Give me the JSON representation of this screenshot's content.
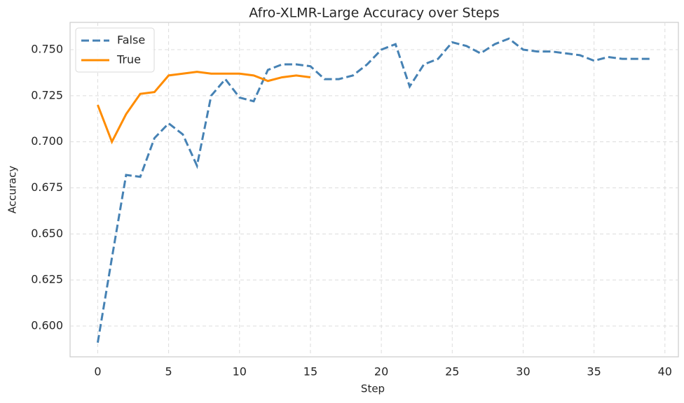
{
  "chart_data": {
    "type": "line",
    "title": "Afro-XLMR-Large Accuracy over Steps",
    "x_label": "Step",
    "y_label": "Accuracy",
    "x": [
      0,
      1,
      2,
      3,
      4,
      5,
      6,
      7,
      8,
      9,
      10,
      11,
      12,
      13,
      14,
      15,
      16,
      17,
      18,
      19,
      20,
      21,
      22,
      23,
      24,
      25,
      26,
      27,
      28,
      29,
      30,
      31,
      32,
      33,
      34,
      35,
      36,
      37,
      38,
      39
    ],
    "series": [
      {
        "name": "False",
        "color": "#4682b4",
        "linestyle": "dashed",
        "values": [
          0.591,
          0.637,
          0.682,
          0.681,
          0.702,
          0.71,
          0.704,
          0.687,
          0.725,
          0.734,
          0.724,
          0.722,
          0.739,
          0.742,
          0.742,
          0.741,
          0.734,
          0.734,
          0.736,
          0.742,
          0.75,
          0.753,
          0.73,
          0.742,
          0.745,
          0.754,
          0.752,
          0.748,
          0.753,
          0.756,
          0.75,
          0.749,
          0.749,
          0.748,
          0.747,
          0.744,
          0.746,
          0.745,
          0.745,
          0.745
        ]
      },
      {
        "name": "True",
        "color": "#ff8c00",
        "linestyle": "solid",
        "values": [
          0.72,
          0.7,
          0.715,
          0.726,
          0.727,
          0.736,
          0.737,
          0.738,
          0.737,
          0.737,
          0.737,
          0.736,
          0.733,
          0.735,
          0.736,
          0.735,
          null,
          null,
          null,
          null,
          null,
          null,
          null,
          null,
          null,
          null,
          null,
          null,
          null,
          null,
          null,
          null,
          null,
          null,
          null,
          null,
          null,
          null,
          null,
          null
        ]
      }
    ],
    "xlim": [
      -1.95,
      40.95
    ],
    "ylim": [
      0.5833,
      0.7648
    ],
    "xticks": [
      0,
      5,
      10,
      15,
      20,
      25,
      30,
      35,
      40
    ],
    "yticks": [
      {
        "value": 0.6,
        "label": "0.600"
      },
      0.625,
      {
        "value": 0.65,
        "label": "0.650"
      },
      0.675,
      {
        "value": 0.7,
        "label": "0.700"
      },
      0.725,
      {
        "value": 0.75,
        "label": "0.750"
      }
    ],
    "grid": true,
    "legend": "upper left"
  }
}
